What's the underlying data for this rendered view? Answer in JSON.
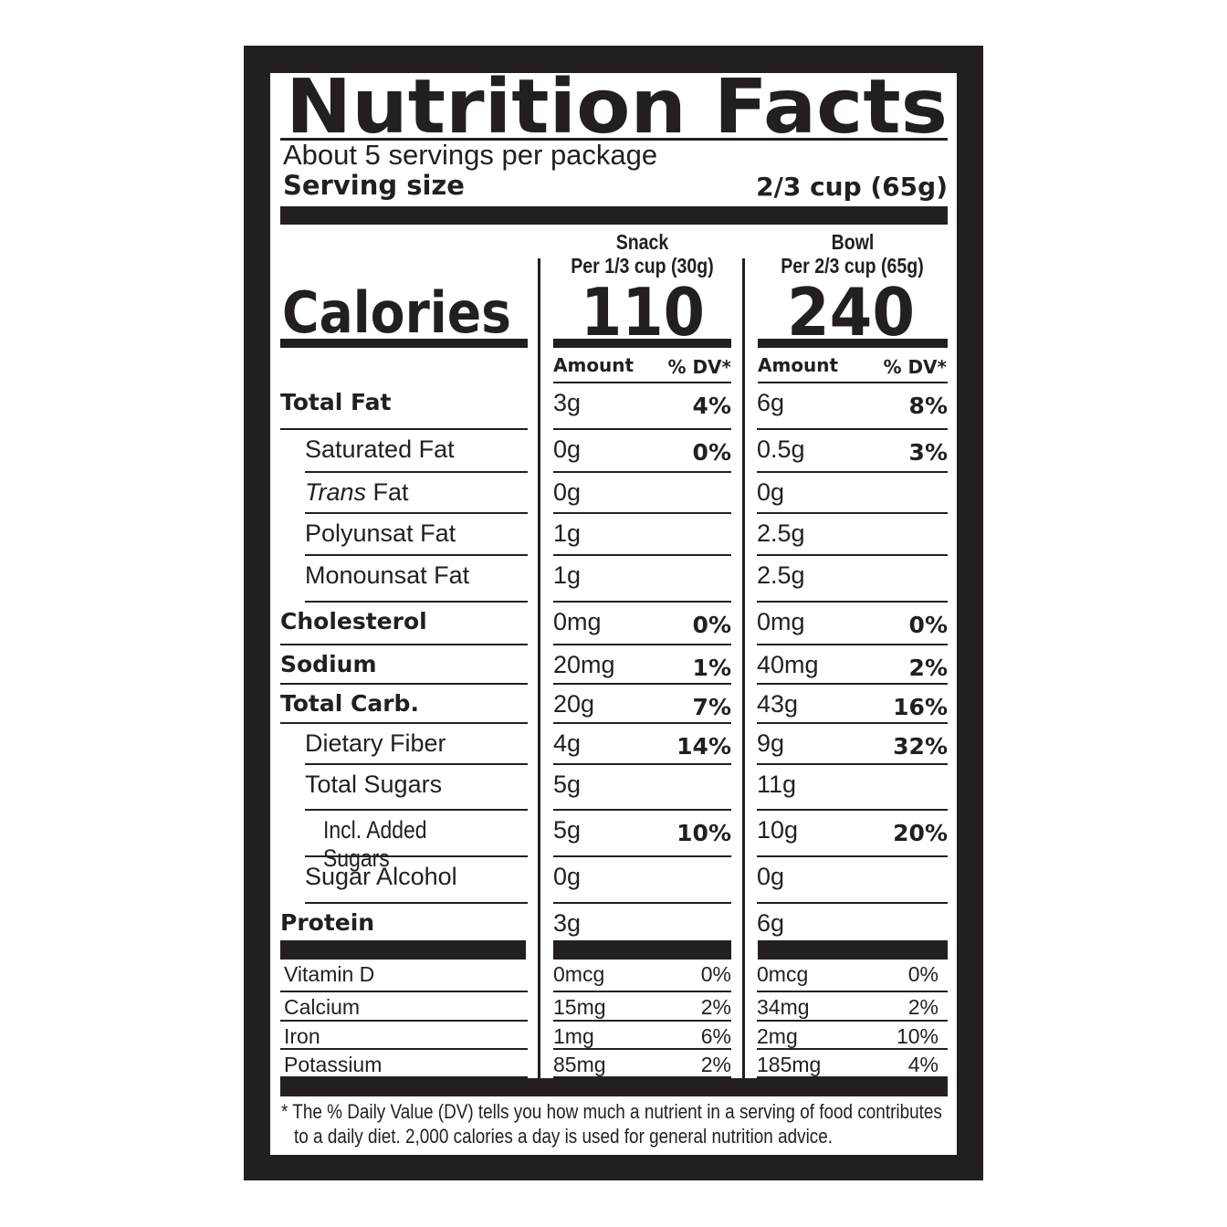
{
  "title": "Nutrition Facts",
  "servings": "About 5 servings per package",
  "serving_size_label": "Serving size",
  "serving_size_value": "2/3 cup (65g)",
  "calories_label": "Calories",
  "columns": [
    {
      "name": "Snack",
      "portion": "Per 1/3 cup (30g)",
      "calories": "110",
      "amount_label": "Amount",
      "dv_label": "% DV*"
    },
    {
      "name": "Bowl",
      "portion": "Per 2/3 cup (65g)",
      "calories": "240",
      "amount_label": "Amount",
      "dv_label": "% DV*"
    }
  ],
  "nutrients": [
    {
      "label": "Total Fat",
      "snack": "3g",
      "snack_dv": "4%",
      "bowl": "6g",
      "bowl_dv": "8%"
    },
    {
      "label": "Saturated Fat",
      "snack": "0g",
      "snack_dv": "0%",
      "bowl": "0.5g",
      "bowl_dv": "3%"
    },
    {
      "label_italic": "Trans",
      "label": " Fat",
      "snack": "0g",
      "snack_dv": "",
      "bowl": "0g",
      "bowl_dv": ""
    },
    {
      "label": "Polyunsat Fat",
      "snack": "1g",
      "snack_dv": "",
      "bowl": "2.5g",
      "bowl_dv": ""
    },
    {
      "label": "Monounsat Fat",
      "snack": "1g",
      "snack_dv": "",
      "bowl": "2.5g",
      "bowl_dv": ""
    },
    {
      "label": "Cholesterol",
      "snack": "0mg",
      "snack_dv": "0%",
      "bowl": "0mg",
      "bowl_dv": "0%"
    },
    {
      "label": "Sodium",
      "snack": "20mg",
      "snack_dv": "1%",
      "bowl": "40mg",
      "bowl_dv": "2%"
    },
    {
      "label": "Total Carb.",
      "snack": "20g",
      "snack_dv": "7%",
      "bowl": "43g",
      "bowl_dv": "16%"
    },
    {
      "label": "Dietary Fiber",
      "snack": "4g",
      "snack_dv": "14%",
      "bowl": "9g",
      "bowl_dv": "32%"
    },
    {
      "label": "Total Sugars",
      "snack": "5g",
      "snack_dv": "",
      "bowl": "11g",
      "bowl_dv": ""
    },
    {
      "label": "Incl. Added Sugars",
      "snack": "5g",
      "snack_dv": "10%",
      "bowl": "10g",
      "bowl_dv": "20%"
    },
    {
      "label": "Sugar Alcohol",
      "snack": "0g",
      "snack_dv": "",
      "bowl": "0g",
      "bowl_dv": ""
    },
    {
      "label": "Protein",
      "snack": "3g",
      "snack_dv": "",
      "bowl": "6g",
      "bowl_dv": ""
    }
  ],
  "minerals": [
    {
      "label": "Vitamin D",
      "snack": "0mcg",
      "snack_dv": "0%",
      "bowl": "0mcg",
      "bowl_dv": "0%"
    },
    {
      "label": "Calcium",
      "snack": "15mg",
      "snack_dv": "2%",
      "bowl": "34mg",
      "bowl_dv": "2%"
    },
    {
      "label": "Iron",
      "snack": "1mg",
      "snack_dv": "6%",
      "bowl": "2mg",
      "bowl_dv": "10%"
    },
    {
      "label": "Potassium",
      "snack": "85mg",
      "snack_dv": "2%",
      "bowl": "185mg",
      "bowl_dv": "4%"
    }
  ],
  "footnote_line1": "* The % Daily Value (DV) tells you how much a nutrient in a serving of food contributes",
  "footnote_line2": "to a daily diet. 2,000 calories a day is used for general nutrition advice."
}
